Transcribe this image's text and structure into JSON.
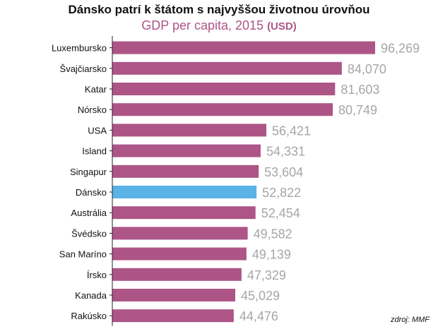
{
  "title": "Dánsko patrí k štátom s najvyššou životnou úrovňou",
  "subtitle": "GDP per capita, 2015",
  "subtitle_unit": "(USD)",
  "source": "zdroj: MMF",
  "colors": {
    "bar": "#ad5587",
    "highlight": "#5ab3e4",
    "value_label": "#a6a6a6",
    "subtitle": "#ad5587",
    "axis": "#222222"
  },
  "chart_data": {
    "type": "bar",
    "orientation": "horizontal",
    "categories": [
      "Luxembursko",
      "Švajčiarsko",
      "Katar",
      "Nórsko",
      "USA",
      "Island",
      "Singapur",
      "Dánsko",
      "Austrália",
      "Švédsko",
      "San Maríno",
      "Írsko",
      "Kanada",
      "Rakúsko"
    ],
    "values": [
      96269,
      84070,
      81603,
      80749,
      56421,
      54331,
      53604,
      52822,
      52454,
      49582,
      49139,
      47329,
      45029,
      44476
    ],
    "value_labels": [
      "96,269",
      "84,070",
      "81,603",
      "80,749",
      "56,421",
      "54,331",
      "53,604",
      "52,822",
      "52,454",
      "49,582",
      "49,139",
      "47,329",
      "45,029",
      "44,476"
    ],
    "highlight": "Dánsko",
    "xlim": [
      0,
      96269
    ],
    "grid": false,
    "legend": "none"
  }
}
